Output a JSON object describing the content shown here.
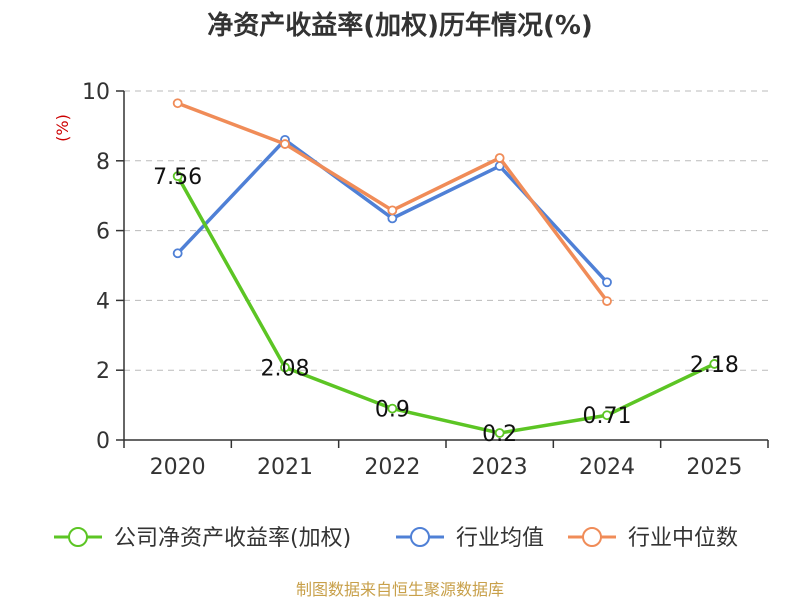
{
  "chart_data": {
    "type": "line",
    "title": "净资产收益率(加权)历年情况(%)",
    "ylabel": "(%)",
    "categories": [
      "2020",
      "2021",
      "2022",
      "2023",
      "2024",
      "2025"
    ],
    "ylim": [
      0,
      10
    ],
    "yticks": [
      "0",
      "2",
      "4",
      "6",
      "8",
      "10"
    ],
    "grid": true,
    "legend_position": "bottom",
    "series": [
      {
        "name": "公司净资产收益率(加权)",
        "color": "#5cc524",
        "values": [
          7.56,
          2.08,
          0.9,
          0.2,
          0.71,
          2.18
        ],
        "labels": [
          "7.56",
          "2.08",
          "0.9",
          "0.2",
          "0.71",
          "2.18"
        ]
      },
      {
        "name": "行业均值",
        "color": "#4f80d6",
        "values": [
          5.35,
          8.6,
          6.35,
          7.85,
          4.52,
          null
        ]
      },
      {
        "name": "行业中位数",
        "color": "#f08c58",
        "values": [
          9.65,
          8.48,
          6.58,
          8.08,
          3.98,
          null
        ]
      }
    ]
  },
  "footer": {
    "source": "制图数据来自恒生聚源数据库"
  }
}
